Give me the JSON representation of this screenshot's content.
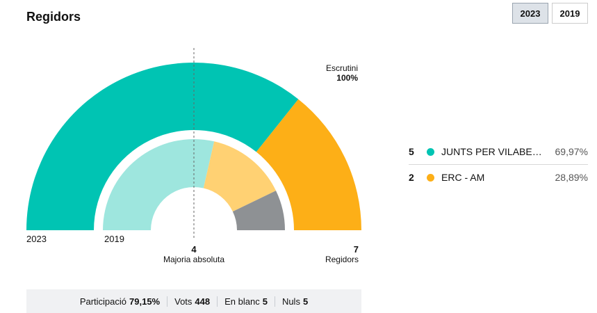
{
  "header": {
    "title": "Regidors"
  },
  "year_tabs": [
    {
      "label": "2023",
      "active": true
    },
    {
      "label": "2019",
      "active": false
    }
  ],
  "chart_data": {
    "type": "pie",
    "variant": "semicircle-parliament",
    "total_seats": 7,
    "majority": 4,
    "rings": [
      {
        "year": "2023",
        "segments": [
          {
            "name": "JUNTS PER VILABE…",
            "seats": 5,
            "color": "#00c4b3"
          },
          {
            "name": "ERC - AM",
            "seats": 2,
            "color": "#fdaf17"
          }
        ]
      },
      {
        "year": "2019",
        "segments": [
          {
            "seats": 4,
            "color": "#9ee6de"
          },
          {
            "seats": 2,
            "color": "#ffd173"
          },
          {
            "seats": 1,
            "color": "#8e9194"
          }
        ]
      }
    ]
  },
  "labels": {
    "ring_outer": "2023",
    "ring_inner": "2019",
    "escrutini_label": "Escrutini",
    "escrutini_value": "100%",
    "majority_value": "4",
    "majority_label": "Majoria absoluta",
    "seats_value": "7",
    "seats_label": "Regidors"
  },
  "legend": [
    {
      "seats": "5",
      "party": "JUNTS PER VILABE…",
      "pct": "69,97%",
      "color": "#00c4b3"
    },
    {
      "seats": "2",
      "party": "ERC - AM",
      "pct": "28,89%",
      "color": "#fdaf17"
    }
  ],
  "stats": [
    {
      "label": "Participació",
      "value": "79,15%"
    },
    {
      "label": "Vots",
      "value": "448"
    },
    {
      "label": "En blanc",
      "value": "5"
    },
    {
      "label": "Nuls",
      "value": "5"
    }
  ]
}
